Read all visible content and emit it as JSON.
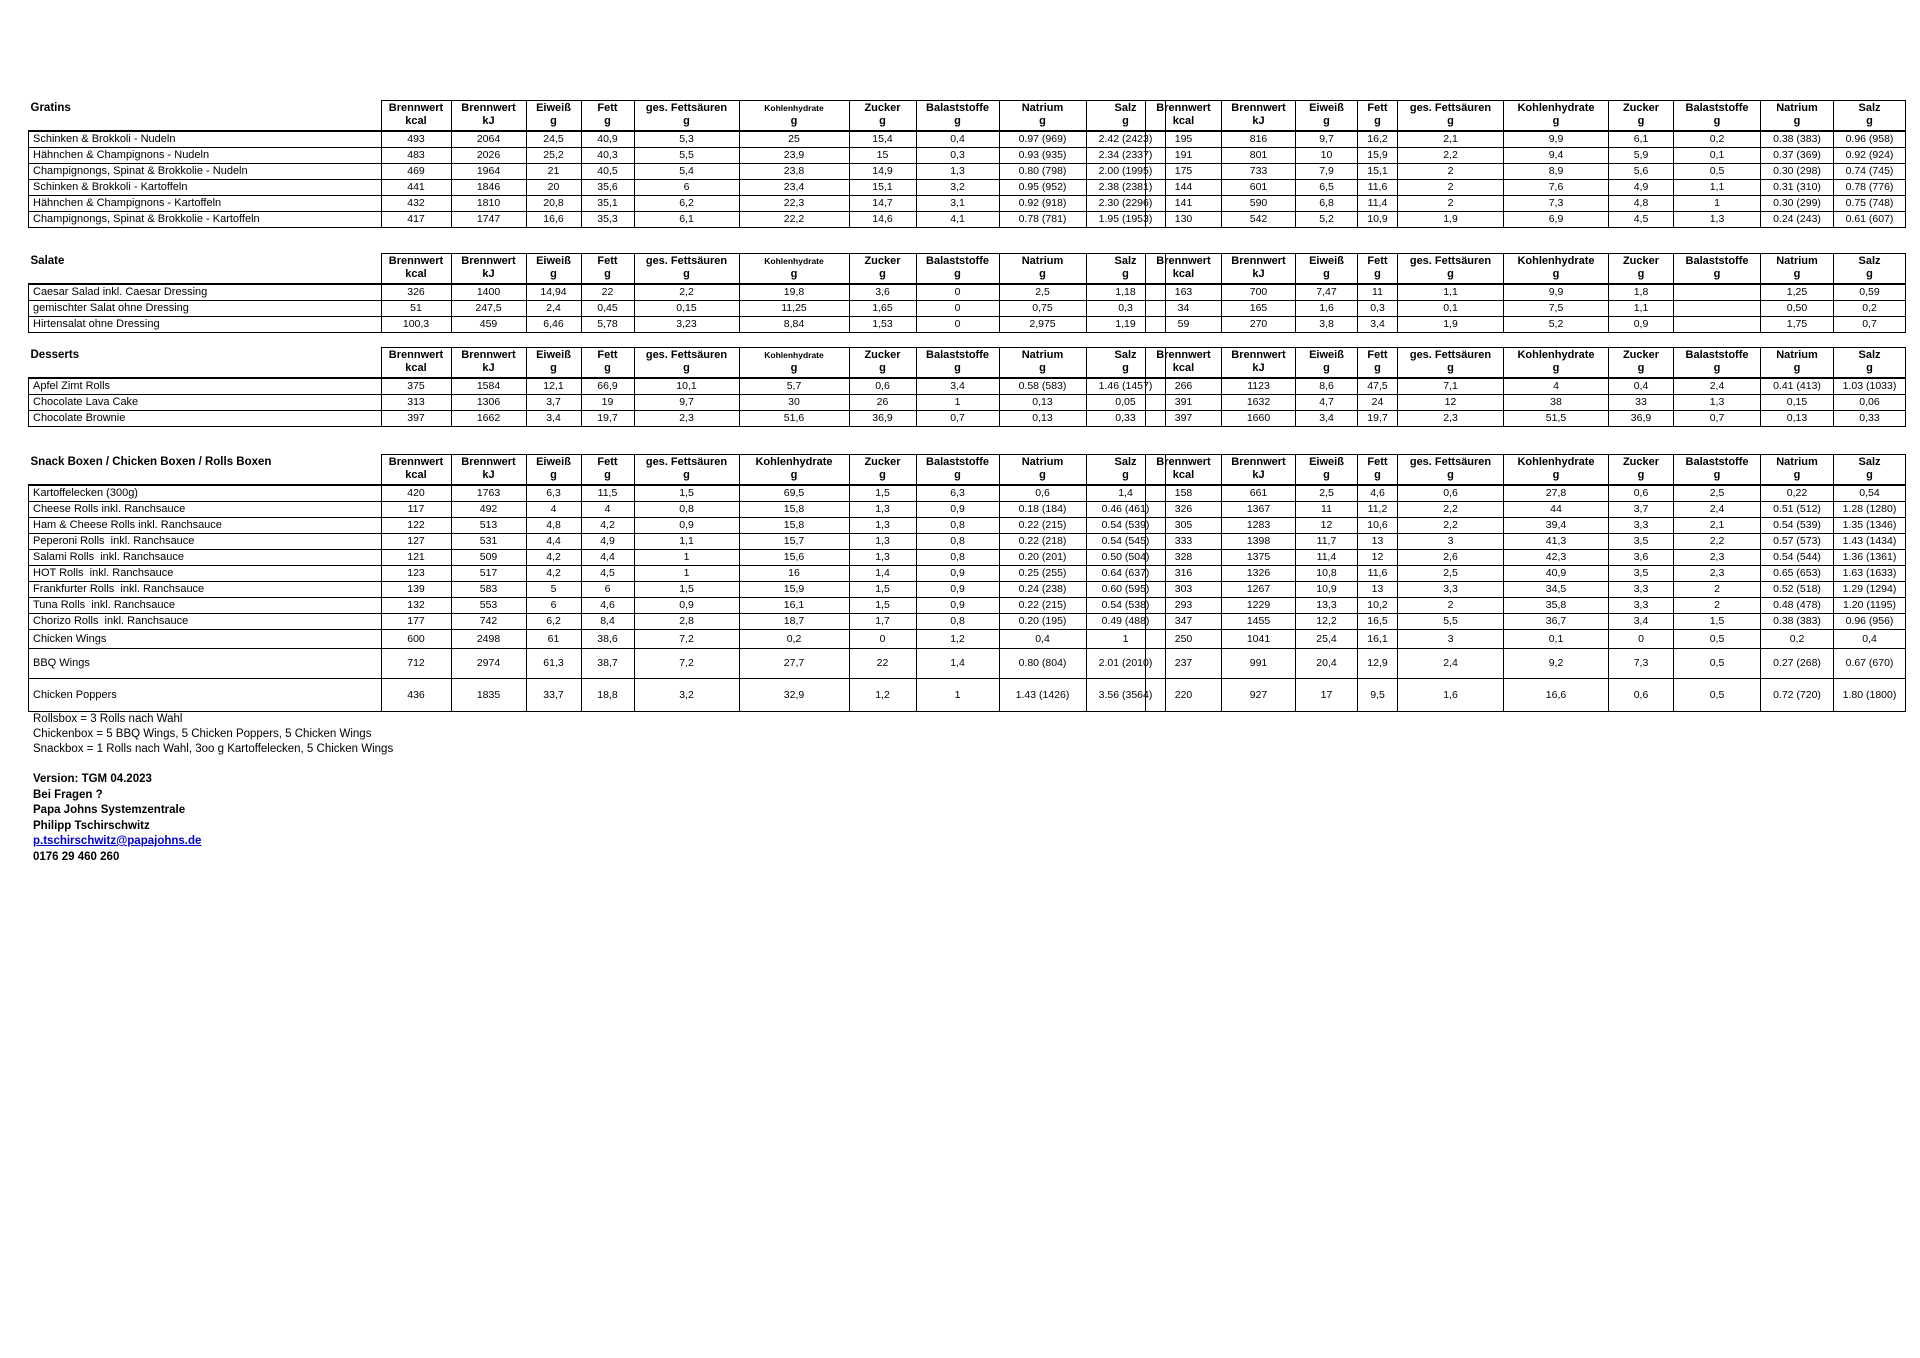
{
  "columns": [
    {
      "label": "Brennwert",
      "unit": "kcal"
    },
    {
      "label": "Brennwert",
      "unit": "kJ"
    },
    {
      "label": "Eiweiß",
      "unit": "g"
    },
    {
      "label": "Fett",
      "unit": "g"
    },
    {
      "label": "ges. Fettsäuren",
      "unit": "g"
    },
    {
      "label": "Kohlenhydrate",
      "unit": "g"
    },
    {
      "label": "Zucker",
      "unit": "g"
    },
    {
      "label": "Balaststoffe",
      "unit": "g"
    },
    {
      "label": "Natrium",
      "unit": "g"
    },
    {
      "label": "Salz",
      "unit": "g"
    }
  ],
  "sections": [
    {
      "id": "gratins",
      "title": "Gratins",
      "rows": [
        {
          "name": "Schinken & Brokkoli - Nudeln",
          "left": [
            "493",
            "2064",
            "24,5",
            "40,9",
            "5,3",
            "25",
            "15,4",
            "0,4",
            "0.97 (969)",
            "2.42 (2423)"
          ],
          "right": [
            "195",
            "816",
            "9,7",
            "16,2",
            "2,1",
            "9,9",
            "6,1",
            "0,2",
            "0.38 (383)",
            "0.96 (958)"
          ]
        },
        {
          "name": "Hähnchen & Champignons - Nudeln",
          "left": [
            "483",
            "2026",
            "25,2",
            "40,3",
            "5,5",
            "23,9",
            "15",
            "0,3",
            "0.93 (935)",
            "2.34 (2337)"
          ],
          "right": [
            "191",
            "801",
            "10",
            "15,9",
            "2,2",
            "9,4",
            "5,9",
            "0,1",
            "0.37 (369)",
            "0.92 (924)"
          ]
        },
        {
          "name": "Champignongs, Spinat & Brokkolie - Nudeln",
          "left": [
            "469",
            "1964",
            "21",
            "40,5",
            "5,4",
            "23,8",
            "14,9",
            "1,3",
            "0.80 (798)",
            "2.00 (1995)"
          ],
          "right": [
            "175",
            "733",
            "7,9",
            "15,1",
            "2",
            "8,9",
            "5,6",
            "0,5",
            "0.30 (298)",
            "0.74 (745)"
          ]
        },
        {
          "name": "Schinken & Brokkoli - Kartoffeln",
          "left": [
            "441",
            "1846",
            "20",
            "35,6",
            "6",
            "23,4",
            "15,1",
            "3,2",
            "0.95 (952)",
            "2.38 (2381)"
          ],
          "right": [
            "144",
            "601",
            "6,5",
            "11,6",
            "2",
            "7,6",
            "4,9",
            "1,1",
            "0.31 (310)",
            "0.78 (776)"
          ]
        },
        {
          "name": "Hähnchen & Champignons - Kartoffeln",
          "left": [
            "432",
            "1810",
            "20,8",
            "35,1",
            "6,2",
            "22,3",
            "14,7",
            "3,1",
            "0.92 (918)",
            "2.30 (2296)"
          ],
          "right": [
            "141",
            "590",
            "6,8",
            "11,4",
            "2",
            "7,3",
            "4,8",
            "1",
            "0.30 (299)",
            "0.75 (748)"
          ]
        },
        {
          "name": "Champignongs, Spinat & Brokkolie - Kartoffeln",
          "left": [
            "417",
            "1747",
            "16,6",
            "35,3",
            "6,1",
            "22,2",
            "14,6",
            "4,1",
            "0.78 (781)",
            "1.95 (1953)"
          ],
          "right": [
            "130",
            "542",
            "5,2",
            "10,9",
            "1,9",
            "6,9",
            "4,5",
            "1,3",
            "0.24 (243)",
            "0.61 (607)"
          ]
        }
      ]
    },
    {
      "id": "salate",
      "title": "Salate",
      "rows": [
        {
          "name": "Caesar Salad inkl. Caesar Dressing",
          "left": [
            "326",
            "1400",
            "14,94",
            "22",
            "2,2",
            "19,8",
            "3,6",
            "0",
            "2,5",
            "1,18"
          ],
          "right": [
            "163",
            "700",
            "7,47",
            "11",
            "1,1",
            "9,9",
            "1,8",
            "",
            "1,25",
            "0,59"
          ]
        },
        {
          "name": "gemischter Salat ohne Dressing",
          "left": [
            "51",
            "247,5",
            "2,4",
            "0,45",
            "0,15",
            "11,25",
            "1,65",
            "0",
            "0,75",
            "0,3"
          ],
          "right": [
            "34",
            "165",
            "1,6",
            "0,3",
            "0,1",
            "7,5",
            "1,1",
            "",
            "0,50",
            "0,2"
          ]
        },
        {
          "name": "Hirtensalat ohne Dressing",
          "left": [
            "100,3",
            "459",
            "6,46",
            "5,78",
            "3,23",
            "8,84",
            "1,53",
            "0",
            "2,975",
            "1,19"
          ],
          "right": [
            "59",
            "270",
            "3,8",
            "3,4",
            "1,9",
            "5,2",
            "0,9",
            "",
            "1,75",
            "0,7"
          ]
        }
      ]
    },
    {
      "id": "desserts",
      "title": "Desserts",
      "rows": [
        {
          "name": "Apfel Zimt Rolls",
          "left": [
            "375",
            "1584",
            "12,1",
            "66,9",
            "10,1",
            "5,7",
            "0,6",
            "3,4",
            "0.58 (583)",
            "1.46 (1457)"
          ],
          "right": [
            "266",
            "1123",
            "8,6",
            "47,5",
            "7,1",
            "4",
            "0,4",
            "2,4",
            "0.41 (413)",
            "1.03 (1033)"
          ]
        },
        {
          "name": "Chocolate Lava Cake",
          "left": [
            "313",
            "1306",
            "3,7",
            "19",
            "9,7",
            "30",
            "26",
            "1",
            "0,13",
            "0,05"
          ],
          "right": [
            "391",
            "1632",
            "4,7",
            "24",
            "12",
            "38",
            "33",
            "1,3",
            "0,15",
            "0,06"
          ]
        },
        {
          "name": "Chocolate Brownie",
          "left": [
            "397",
            "1662",
            "3,4",
            "19,7",
            "2,3",
            "51,6",
            "36,9",
            "0,7",
            "0,13",
            "0,33"
          ],
          "right": [
            "397",
            "1660",
            "3,4",
            "19,7",
            "2,3",
            "51,5",
            "36,9",
            "0,7",
            "0,13",
            "0,33"
          ]
        }
      ]
    },
    {
      "id": "snack-boxen",
      "title": "Snack Boxen / Chicken Boxen / Rolls Boxen",
      "rows": [
        {
          "name": "Kartoffelecken (300g)",
          "left": [
            "420",
            "1763",
            "6,3",
            "11,5",
            "1,5",
            "69,5",
            "1,5",
            "6,3",
            "0,6",
            "1,4"
          ],
          "right": [
            "158",
            "661",
            "2,5",
            "4,6",
            "0,6",
            "27,8",
            "0,6",
            "2,5",
            "0,22",
            "0,54"
          ]
        },
        {
          "name": "Cheese Rolls inkl. Ranchsauce",
          "left": [
            "117",
            "492",
            "4",
            "4",
            "0,8",
            "15,8",
            "1,3",
            "0,9",
            "0.18 (184)",
            "0.46 (461)"
          ],
          "right": [
            "326",
            "1367",
            "11",
            "11,2",
            "2,2",
            "44",
            "3,7",
            "2,4",
            "0.51 (512)",
            "1.28 (1280)"
          ]
        },
        {
          "name": "Ham & Cheese Rolls inkl. Ranchsauce",
          "left": [
            "122",
            "513",
            "4,8",
            "4,2",
            "0,9",
            "15,8",
            "1,3",
            "0,8",
            "0.22 (215)",
            "0.54 (539)"
          ],
          "right": [
            "305",
            "1283",
            "12",
            "10,6",
            "2,2",
            "39,4",
            "3,3",
            "2,1",
            "0.54 (539)",
            "1.35 (1346)"
          ]
        },
        {
          "name": "Peperoni Rolls  inkl. Ranchsauce",
          "left": [
            "127",
            "531",
            "4,4",
            "4,9",
            "1,1",
            "15,7",
            "1,3",
            "0,8",
            "0.22 (218)",
            "0.54 (545)"
          ],
          "right": [
            "333",
            "1398",
            "11,7",
            "13",
            "3",
            "41,3",
            "3,5",
            "2,2",
            "0.57 (573)",
            "1.43 (1434)"
          ]
        },
        {
          "name": "Salami Rolls  inkl. Ranchsauce",
          "left": [
            "121",
            "509",
            "4,2",
            "4,4",
            "1",
            "15,6",
            "1,3",
            "0,8",
            "0.20 (201)",
            "0.50 (504)"
          ],
          "right": [
            "328",
            "1375",
            "11,4",
            "12",
            "2,6",
            "42,3",
            "3,6",
            "2,3",
            "0.54 (544)",
            "1.36 (1361)"
          ]
        },
        {
          "name": "HOT Rolls  inkl. Ranchsauce",
          "left": [
            "123",
            "517",
            "4,2",
            "4,5",
            "1",
            "16",
            "1,4",
            "0,9",
            "0.25 (255)",
            "0.64 (637)"
          ],
          "right": [
            "316",
            "1326",
            "10,8",
            "11,6",
            "2,5",
            "40,9",
            "3,5",
            "2,3",
            "0.65 (653)",
            "1.63 (1633)"
          ]
        },
        {
          "name": "Frankfurter Rolls  inkl. Ranchsauce",
          "left": [
            "139",
            "583",
            "5",
            "6",
            "1,5",
            "15,9",
            "1,5",
            "0,9",
            "0.24 (238)",
            "0.60 (595)"
          ],
          "right": [
            "303",
            "1267",
            "10,9",
            "13",
            "3,3",
            "34,5",
            "3,3",
            "2",
            "0.52 (518)",
            "1.29 (1294)"
          ]
        },
        {
          "name": "Tuna Rolls  inkl. Ranchsauce",
          "left": [
            "132",
            "553",
            "6",
            "4,6",
            "0,9",
            "16,1",
            "1,5",
            "0,9",
            "0.22 (215)",
            "0.54 (538)"
          ],
          "right": [
            "293",
            "1229",
            "13,3",
            "10,2",
            "2",
            "35,8",
            "3,3",
            "2",
            "0.48 (478)",
            "1.20 (1195)"
          ]
        },
        {
          "name": "Chorizo Rolls  inkl. Ranchsauce",
          "left": [
            "177",
            "742",
            "6,2",
            "8,4",
            "2,8",
            "18,7",
            "1,7",
            "0,8",
            "0.20 (195)",
            "0.49 (488)"
          ],
          "right": [
            "347",
            "1455",
            "12,2",
            "16,5",
            "5,5",
            "36,7",
            "3,4",
            "1,5",
            "0.38 (383)",
            "0.96 (956)"
          ]
        },
        {
          "name": "Chicken Wings",
          "h": 19,
          "left": [
            "600",
            "2498",
            "61",
            "38,6",
            "7,2",
            "0,2",
            "0",
            "1,2",
            "0,4",
            "1"
          ],
          "right": [
            "250",
            "1041",
            "25,4",
            "16,1",
            "3",
            "0,1",
            "0",
            "0,5",
            "0,2",
            "0,4"
          ]
        },
        {
          "name": "BBQ Wings",
          "h": 30,
          "left": [
            "712",
            "2974",
            "61,3",
            "38,7",
            "7,2",
            "27,7",
            "22",
            "1,4",
            "0.80 (804)",
            "2.01 (2010)"
          ],
          "right": [
            "237",
            "991",
            "20,4",
            "12,9",
            "2,4",
            "9,2",
            "7,3",
            "0,5",
            "0.27 (268)",
            "0.67 (670)"
          ]
        },
        {
          "name": "Chicken Poppers",
          "h": 33,
          "left": [
            "436",
            "1835",
            "33,7",
            "18,8",
            "3,2",
            "32,9",
            "1,2",
            "1",
            "1.43 (1426)",
            "3.56 (3564)"
          ],
          "right": [
            "220",
            "927",
            "17",
            "9,5",
            "1,6",
            "16,6",
            "0,6",
            "0,5",
            "0.72 (720)",
            "1.80 (1800)"
          ]
        }
      ]
    }
  ],
  "notes": [
    "Rollsbox = 3 Rolls nach Wahl",
    "Chickenbox = 5 BBQ Wings, 5 Chicken Poppers, 5 Chicken Wings",
    "Snackbox = 1 Rolls nach Wahl, 3oo g Kartoffelecken, 5 Chicken Wings"
  ],
  "contact": {
    "version": "Version: TGM 04.2023",
    "question": "Bei Fragen ?",
    "company": "Papa Johns Systemzentrale",
    "person": "Philipp Tschirschwitz",
    "email": "p.tschirschwitz@papajohns.de",
    "phone": "0176 29 460 260"
  }
}
